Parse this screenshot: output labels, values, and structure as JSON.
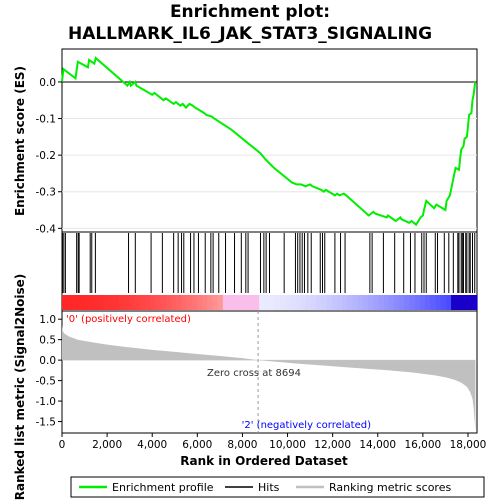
{
  "chart_data": {
    "type": "line",
    "title": "Enrichment plot:",
    "subtitle": "HALLMARK_IL6_JAK_STAT3_SIGNALING",
    "total_genes": 18400,
    "zero_cross": 8694,
    "x_ticks": [
      0,
      2000,
      4000,
      6000,
      8000,
      10000,
      12000,
      14000,
      16000,
      18000
    ],
    "xlabel": "Rank in Ordered Dataset",
    "es_panel": {
      "ylabel": "Enrichment score (ES)",
      "ylim": [
        -0.41,
        0.09
      ],
      "y_ticks": [
        0.0,
        -0.1,
        -0.2,
        -0.3,
        -0.4
      ],
      "y_tick_labels": [
        "0.0",
        "-0.1",
        "-0.2",
        "-0.3",
        "-0.4"
      ],
      "series": [
        {
          "name": "Enrichment profile",
          "color": "#00ee00",
          "x": [
            0,
            60,
            600,
            700,
            1150,
            1200,
            1430,
            1500,
            2900,
            3000,
            3050,
            3250,
            3300,
            4000,
            4100,
            4500,
            4600,
            4950,
            5050,
            5250,
            5350,
            5500,
            5650,
            5800,
            5900,
            6300,
            6400,
            6650,
            6750,
            7000,
            7500,
            8000,
            8500,
            8800,
            9000,
            9400,
            10200,
            10400,
            10500,
            10600,
            10800,
            11000,
            11100,
            11500,
            11600,
            11700,
            12100,
            12200,
            12300,
            12500,
            12600,
            13600,
            13800,
            13900,
            14400,
            14450,
            14800,
            15000,
            15050,
            15400,
            15500,
            15700,
            15800,
            15900,
            16000,
            16050,
            16150,
            16500,
            16600,
            17000,
            17050,
            17200,
            17400,
            17450,
            17600,
            17650,
            17700,
            17800,
            17850,
            17950,
            18000,
            18050,
            18150,
            18200,
            18250,
            18320
          ],
          "y": [
            0.0,
            0.035,
            0.01,
            0.055,
            0.04,
            0.06,
            0.05,
            0.065,
            -0.01,
            0.0,
            -0.01,
            0.0,
            -0.01,
            -0.035,
            -0.03,
            -0.05,
            -0.045,
            -0.06,
            -0.055,
            -0.065,
            -0.06,
            -0.07,
            -0.06,
            -0.065,
            -0.07,
            -0.085,
            -0.09,
            -0.095,
            -0.1,
            -0.11,
            -0.13,
            -0.155,
            -0.18,
            -0.195,
            -0.21,
            -0.235,
            -0.275,
            -0.28,
            -0.28,
            -0.28,
            -0.285,
            -0.28,
            -0.285,
            -0.295,
            -0.3,
            -0.295,
            -0.31,
            -0.305,
            -0.31,
            -0.305,
            -0.31,
            -0.365,
            -0.355,
            -0.36,
            -0.37,
            -0.365,
            -0.38,
            -0.37,
            -0.375,
            -0.385,
            -0.38,
            -0.39,
            -0.38,
            -0.37,
            -0.365,
            -0.35,
            -0.325,
            -0.345,
            -0.335,
            -0.35,
            -0.325,
            -0.31,
            -0.25,
            -0.235,
            -0.24,
            -0.21,
            -0.185,
            -0.175,
            -0.155,
            -0.15,
            -0.12,
            -0.09,
            -0.085,
            -0.05,
            -0.035,
            0.0
          ]
        }
      ]
    },
    "hits": [
      20,
      80,
      150,
      650,
      720,
      760,
      1250,
      1320,
      1480,
      2950,
      3250,
      3950,
      4450,
      4950,
      5150,
      5300,
      5400,
      5700,
      5850,
      6050,
      6350,
      6600,
      6700,
      6950,
      7250,
      7650,
      7950,
      8150,
      8250,
      8800,
      8950,
      9050,
      9200,
      9850,
      10350,
      10450,
      10550,
      10650,
      10750,
      10900,
      11050,
      11450,
      11550,
      11650,
      12100,
      12350,
      12550,
      13650,
      13750,
      14250,
      14750,
      15150,
      15450,
      15650,
      15950,
      16050,
      16150,
      16550,
      16650,
      16950,
      17150,
      17350,
      17550,
      17600,
      17700,
      17750,
      17800,
      17900,
      17950,
      18050,
      18100,
      18200,
      18300
    ],
    "metric_panel": {
      "ylabel": "Ranked list metric (Signal2Noise)",
      "ylim": [
        -1.78,
        1.2
      ],
      "y_ticks": [
        1.0,
        0.5,
        0.0,
        -0.5,
        -1.0,
        -1.5
      ],
      "y_tick_labels": [
        "1.0",
        "0.5",
        "0.0",
        "-0.5",
        "-1.0",
        "-1.5"
      ],
      "fill_color": "#c0c0c0",
      "x": [
        0,
        30,
        100,
        300,
        700,
        1200,
        2000,
        3000,
        4000,
        5000,
        6000,
        7000,
        8000,
        8694,
        9500,
        10500,
        11500,
        12500,
        13500,
        14500,
        15500,
        16500,
        17000,
        17400,
        17700,
        17950,
        18100,
        18200,
        18260,
        18300,
        18330
      ],
      "values": [
        0.85,
        0.72,
        0.65,
        0.58,
        0.5,
        0.45,
        0.38,
        0.31,
        0.25,
        0.2,
        0.15,
        0.1,
        0.05,
        0.0,
        -0.04,
        -0.09,
        -0.13,
        -0.17,
        -0.21,
        -0.25,
        -0.3,
        -0.37,
        -0.42,
        -0.48,
        -0.55,
        -0.65,
        -0.78,
        -0.95,
        -1.2,
        -1.5,
        -1.72
      ]
    },
    "annotations": {
      "pos_label": "'0' (positively correlated)",
      "neg_label": "'2' (negatively correlated)",
      "zero_cross_label": "Zero cross at 8694",
      "pos_color": "#ff0000",
      "neg_color": "#0000ff"
    },
    "legend": {
      "placement": "bottom",
      "items": [
        {
          "label": "Enrichment profile",
          "color": "#00ee00"
        },
        {
          "label": "Hits",
          "color": "#000000"
        },
        {
          "label": "Ranking metric scores",
          "color": "#c0c0c0"
        }
      ]
    }
  }
}
